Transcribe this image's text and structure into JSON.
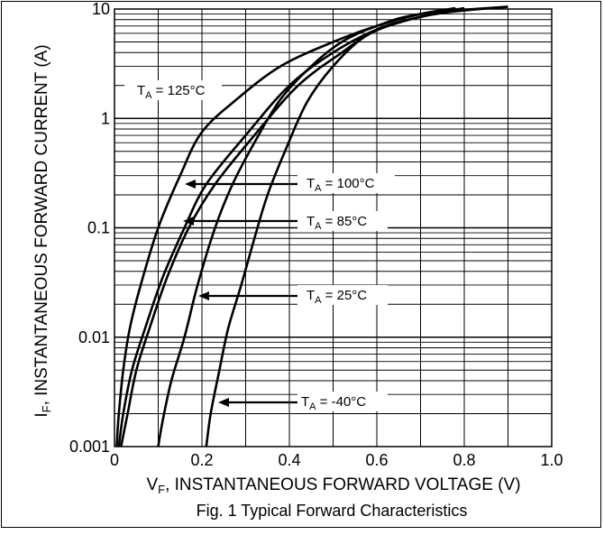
{
  "chart_data": {
    "type": "line",
    "title": "Fig. 1 Typical Forward Characteristics",
    "xlabel": {
      "main": "V",
      "sub": "F",
      "rest": ", INSTANTANEOUS FORWARD VOLTAGE (V)"
    },
    "ylabel": {
      "main": "I",
      "sub": "F",
      "rest": ", INSTANTANEOUS FORWARD CURRENT (A)"
    },
    "xlim": [
      0,
      1.0
    ],
    "ylim": [
      0.001,
      10
    ],
    "yscale": "log",
    "grid": true,
    "x_ticks": [
      {
        "value": 0,
        "label": "0"
      },
      {
        "value": 0.2,
        "label": "0.2"
      },
      {
        "value": 0.4,
        "label": "0.4"
      },
      {
        "value": 0.6,
        "label": "0.6"
      },
      {
        "value": 0.8,
        "label": "0.8"
      },
      {
        "value": 1.0,
        "label": "1.0"
      }
    ],
    "y_ticks": [
      {
        "value": 0.001,
        "label": "0.001"
      },
      {
        "value": 0.01,
        "label": "0.01"
      },
      {
        "value": 0.1,
        "label": "0.1"
      },
      {
        "value": 1,
        "label": "1"
      },
      {
        "value": 10,
        "label": "10"
      }
    ],
    "series": [
      {
        "name": "TA = 125°C",
        "x": [
          0.005,
          0.01,
          0.02,
          0.035,
          0.06,
          0.1,
          0.15,
          0.2,
          0.28,
          0.38,
          0.5,
          0.6,
          0.7,
          0.78
        ],
        "y": [
          0.001,
          0.002,
          0.005,
          0.012,
          0.03,
          0.1,
          0.3,
          0.75,
          1.5,
          3,
          5,
          7,
          9,
          10.2
        ]
      },
      {
        "name": "TA = 100°C",
        "x": [
          0.01,
          0.02,
          0.04,
          0.07,
          0.11,
          0.16,
          0.21,
          0.3,
          0.4,
          0.5,
          0.6,
          0.7,
          0.8
        ],
        "y": [
          0.001,
          0.002,
          0.005,
          0.012,
          0.035,
          0.1,
          0.25,
          0.7,
          2,
          4,
          6.5,
          8.5,
          10.2
        ]
      },
      {
        "name": "TA = 85°C",
        "x": [
          0.015,
          0.03,
          0.05,
          0.08,
          0.12,
          0.17,
          0.23,
          0.32,
          0.42,
          0.52,
          0.6,
          0.7,
          0.8
        ],
        "y": [
          0.001,
          0.002,
          0.005,
          0.012,
          0.035,
          0.1,
          0.25,
          0.7,
          2,
          4,
          6.5,
          8.5,
          10.2
        ]
      },
      {
        "name": "TA = 25°C",
        "x": [
          0.1,
          0.11,
          0.13,
          0.16,
          0.19,
          0.23,
          0.27,
          0.32,
          0.38,
          0.45,
          0.52,
          0.6,
          0.7,
          0.9
        ],
        "y": [
          0.001,
          0.0017,
          0.004,
          0.01,
          0.03,
          0.1,
          0.25,
          0.6,
          1.5,
          3,
          5,
          7,
          9,
          10.5
        ]
      },
      {
        "name": "TA = -40°C",
        "x": [
          0.21,
          0.22,
          0.24,
          0.26,
          0.29,
          0.32,
          0.35,
          0.39,
          0.44,
          0.5,
          0.57,
          0.65,
          0.75,
          0.9
        ],
        "y": [
          0.001,
          0.002,
          0.005,
          0.012,
          0.03,
          0.08,
          0.2,
          0.5,
          1.4,
          3,
          5.5,
          7.5,
          9.2,
          10.5
        ]
      }
    ],
    "annotations": [
      {
        "main": "T",
        "sub": "A",
        "rest": " = 125°C"
      },
      {
        "main": "T",
        "sub": "A",
        "rest": " = 100°C"
      },
      {
        "main": "T",
        "sub": "A",
        "rest": " = 85°C"
      },
      {
        "main": "T",
        "sub": "A",
        "rest": " = 25°C"
      },
      {
        "main": "T",
        "sub": "A",
        "rest": " = -40°C"
      }
    ]
  }
}
